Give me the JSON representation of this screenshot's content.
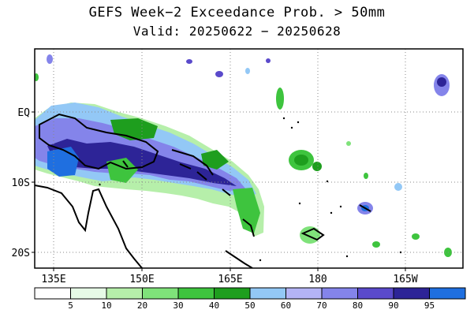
{
  "title": "GEFS Week−2 Exceedance Prob. > 50mm",
  "subtitle": "Valid: 20250622 − 20250628",
  "lat_labels": [
    "EQ",
    "10S",
    "20S"
  ],
  "lon_labels": [
    "135E",
    "150E",
    "165E",
    "180",
    "165W"
  ],
  "colorbar": {
    "colors": [
      "#ffffff",
      "#e6fae6",
      "#b6efaa",
      "#7fe27a",
      "#3ec43e",
      "#1e9e1e",
      "#93c8f6",
      "#b4b4f6",
      "#8484ea",
      "#5a4acb",
      "#2d2497",
      "#1f6fe0"
    ],
    "labels": [
      "5",
      "10",
      "20",
      "30",
      "40",
      "50",
      "60",
      "70",
      "80",
      "90",
      "95"
    ]
  }
}
